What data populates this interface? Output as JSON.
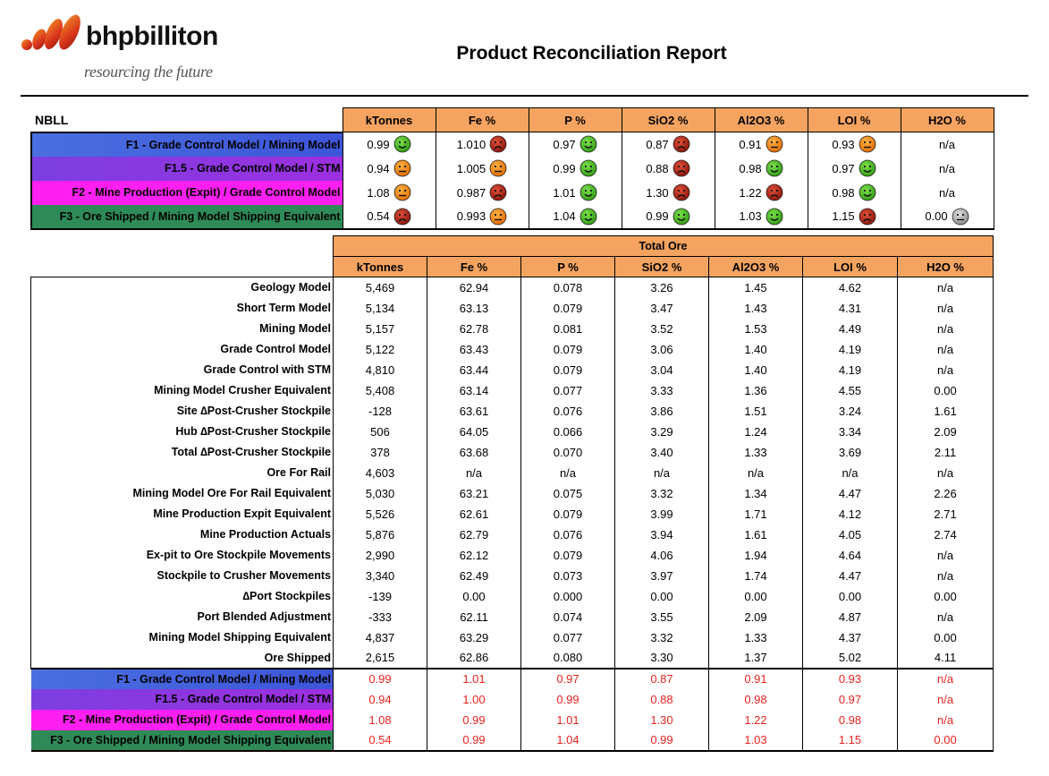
{
  "header": {
    "logo_word": "bhpbilliton",
    "logo_tagline": "resourcing the future",
    "report_title": "Product Reconciliation Report"
  },
  "colors": {
    "header_orange": "#f4a460",
    "f1_blue": "#3d55d8",
    "f15_purple": "#8b30e0",
    "f2_magenta": "#ff1ff0",
    "f3_green": "#2e8b57",
    "ratio_red": "#e8231f"
  },
  "summary": {
    "site": "NBLL",
    "columns": [
      "kTonnes",
      "Fe %",
      "P %",
      "SiO2 %",
      "Al2O3 %",
      "LOI %",
      "H2O %"
    ],
    "rows": [
      {
        "label": "F1 - Grade Control Model / Mining Model",
        "cells": [
          {
            "v": "0.99",
            "face": "green"
          },
          {
            "v": "1.010",
            "face": "red"
          },
          {
            "v": "0.97",
            "face": "green"
          },
          {
            "v": "0.87",
            "face": "red"
          },
          {
            "v": "0.91",
            "face": "orange"
          },
          {
            "v": "0.93",
            "face": "orange"
          },
          {
            "v": "n/a",
            "face": ""
          }
        ]
      },
      {
        "label": "F1.5 - Grade Control Model / STM",
        "cells": [
          {
            "v": "0.94",
            "face": "orange"
          },
          {
            "v": "1.005",
            "face": "orange"
          },
          {
            "v": "0.99",
            "face": "green"
          },
          {
            "v": "0.88",
            "face": "red"
          },
          {
            "v": "0.98",
            "face": "green"
          },
          {
            "v": "0.97",
            "face": "green"
          },
          {
            "v": "n/a",
            "face": ""
          }
        ]
      },
      {
        "label": "F2 - Mine Production (Expit) / Grade Control Model",
        "cells": [
          {
            "v": "1.08",
            "face": "orange"
          },
          {
            "v": "0.987",
            "face": "red"
          },
          {
            "v": "1.01",
            "face": "green"
          },
          {
            "v": "1.30",
            "face": "red"
          },
          {
            "v": "1.22",
            "face": "red"
          },
          {
            "v": "0.98",
            "face": "green"
          },
          {
            "v": "n/a",
            "face": ""
          }
        ]
      },
      {
        "label": "F3 - Ore Shipped / Mining Model Shipping Equivalent",
        "cells": [
          {
            "v": "0.54",
            "face": "red"
          },
          {
            "v": "0.993",
            "face": "orange"
          },
          {
            "v": "1.04",
            "face": "green"
          },
          {
            "v": "0.99",
            "face": "green"
          },
          {
            "v": "1.03",
            "face": "green"
          },
          {
            "v": "1.15",
            "face": "red"
          },
          {
            "v": "0.00",
            "face": "grey"
          }
        ]
      }
    ]
  },
  "main": {
    "group_title": "Total Ore",
    "columns": [
      "kTonnes",
      "Fe %",
      "P %",
      "SiO2 %",
      "Al2O3 %",
      "LOI %",
      "H2O %"
    ],
    "rows": [
      {
        "label": "Geology Model",
        "values": [
          "5,469",
          "62.94",
          "0.078",
          "3.26",
          "1.45",
          "4.62",
          "n/a"
        ]
      },
      {
        "label": "Short Term Model",
        "values": [
          "5,134",
          "63.13",
          "0.079",
          "3.47",
          "1.43",
          "4.31",
          "n/a"
        ]
      },
      {
        "label": "Mining Model",
        "values": [
          "5,157",
          "62.78",
          "0.081",
          "3.52",
          "1.53",
          "4.49",
          "n/a"
        ]
      },
      {
        "label": "Grade Control Model",
        "values": [
          "5,122",
          "63.43",
          "0.079",
          "3.06",
          "1.40",
          "4.19",
          "n/a"
        ]
      },
      {
        "label": "Grade Control with STM",
        "values": [
          "4,810",
          "63.44",
          "0.079",
          "3.04",
          "1.40",
          "4.19",
          "n/a"
        ]
      },
      {
        "label": "Mining Model Crusher Equivalent",
        "values": [
          "5,408",
          "63.14",
          "0.077",
          "3.33",
          "1.36",
          "4.55",
          "0.00"
        ]
      },
      {
        "label": "Site ∆Post-Crusher Stockpile",
        "values": [
          "-128",
          "63.61",
          "0.076",
          "3.86",
          "1.51",
          "3.24",
          "1.61"
        ]
      },
      {
        "label": "Hub ∆Post-Crusher Stockpile",
        "values": [
          "506",
          "64.05",
          "0.066",
          "3.29",
          "1.24",
          "3.34",
          "2.09"
        ]
      },
      {
        "label": "Total ∆Post-Crusher Stockpile",
        "values": [
          "378",
          "63.68",
          "0.070",
          "3.40",
          "1.33",
          "3.69",
          "2.11"
        ]
      },
      {
        "label": "Ore For Rail",
        "values": [
          "4,603",
          "n/a",
          "n/a",
          "n/a",
          "n/a",
          "n/a",
          "n/a"
        ]
      },
      {
        "label": "Mining Model Ore For Rail Equivalent",
        "values": [
          "5,030",
          "63.21",
          "0.075",
          "3.32",
          "1.34",
          "4.47",
          "2.26"
        ]
      },
      {
        "label": "Mine Production Expit Equivalent",
        "values": [
          "5,526",
          "62.61",
          "0.079",
          "3.99",
          "1.71",
          "4.12",
          "2.71"
        ]
      },
      {
        "label": "Mine Production Actuals",
        "values": [
          "5,876",
          "62.79",
          "0.076",
          "3.94",
          "1.61",
          "4.05",
          "2.74"
        ]
      },
      {
        "label": "Ex-pit to Ore Stockpile Movements",
        "values": [
          "2,990",
          "62.12",
          "0.079",
          "4.06",
          "1.94",
          "4.64",
          "n/a"
        ]
      },
      {
        "label": "Stockpile to Crusher Movements",
        "values": [
          "3,340",
          "62.49",
          "0.073",
          "3.97",
          "1.74",
          "4.47",
          "n/a"
        ]
      },
      {
        "label": "∆Port Stockpiles",
        "values": [
          "-139",
          "0.00",
          "0.000",
          "0.00",
          "0.00",
          "0.00",
          "0.00"
        ]
      },
      {
        "label": "Port Blended Adjustment",
        "values": [
          "-333",
          "62.11",
          "0.074",
          "3.55",
          "2.09",
          "4.87",
          "n/a"
        ]
      },
      {
        "label": "Mining Model Shipping Equivalent",
        "values": [
          "4,837",
          "63.29",
          "0.077",
          "3.32",
          "1.33",
          "4.37",
          "0.00"
        ]
      },
      {
        "label": "Ore Shipped",
        "values": [
          "2,615",
          "62.86",
          "0.080",
          "3.30",
          "1.37",
          "5.02",
          "4.11"
        ]
      }
    ],
    "ratios": [
      {
        "label": "F1 - Grade Control Model / Mining Model",
        "values": [
          "0.99",
          "1.01",
          "0.97",
          "0.87",
          "0.91",
          "0.93",
          "n/a"
        ]
      },
      {
        "label": "F1.5 - Grade Control Model / STM",
        "values": [
          "0.94",
          "1.00",
          "0.99",
          "0.88",
          "0.98",
          "0.97",
          "n/a"
        ]
      },
      {
        "label": "F2 - Mine Production (Expit) / Grade Control Model",
        "values": [
          "1.08",
          "0.99",
          "1.01",
          "1.30",
          "1.22",
          "0.98",
          "n/a"
        ]
      },
      {
        "label": "F3 - Ore Shipped / Mining Model Shipping Equivalent",
        "values": [
          "0.54",
          "0.99",
          "1.04",
          "0.99",
          "1.03",
          "1.15",
          "0.00"
        ]
      }
    ]
  }
}
